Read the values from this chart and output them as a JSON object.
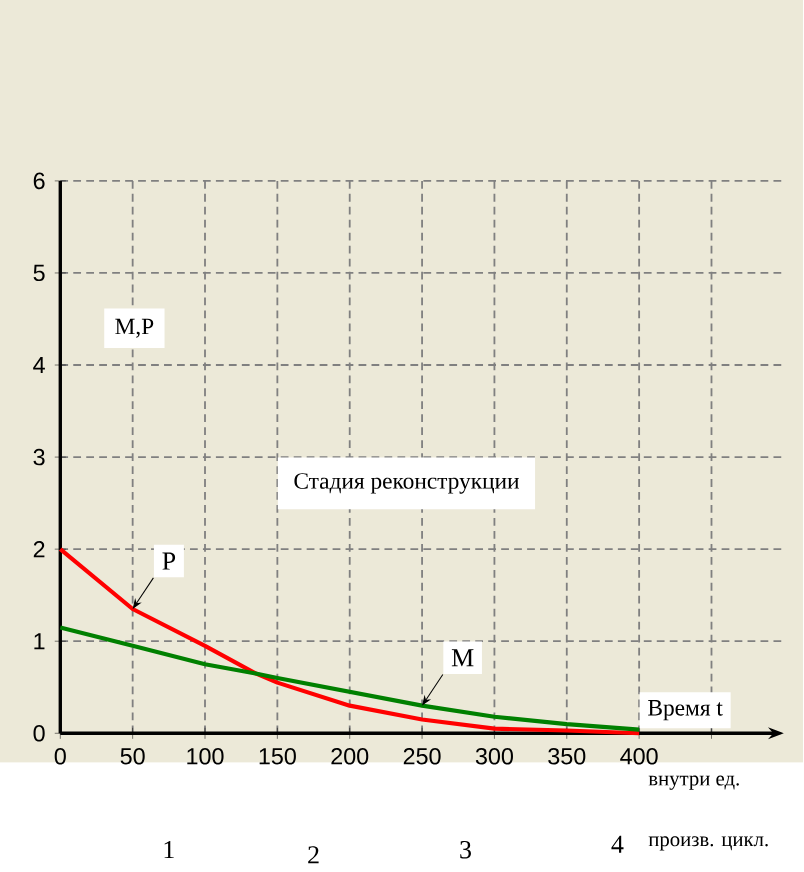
{
  "chart_data": {
    "type": "line",
    "xlabel": "Время t",
    "ylabel": "M,P",
    "x": [
      0,
      50,
      100,
      135,
      150,
      200,
      250,
      300,
      350,
      400
    ],
    "series": [
      {
        "name": "P",
        "color": "#ff0000",
        "values": [
          2.0,
          1.35,
          0.95,
          0.65,
          0.55,
          0.3,
          0.15,
          0.05,
          0.03,
          0.0
        ]
      },
      {
        "name": "M",
        "color": "#008000",
        "values": [
          1.15,
          0.95,
          0.75,
          0.65,
          0.6,
          0.45,
          0.3,
          0.18,
          0.1,
          0.04
        ]
      }
    ],
    "xlim": [
      0,
      500
    ],
    "ylim": [
      0,
      6
    ],
    "xticks": [
      0,
      50,
      100,
      150,
      200,
      250,
      300,
      350,
      400,
      {
        "value": 450,
        "label": null
      }
    ],
    "yticks": [
      0,
      1,
      2,
      3,
      4,
      5,
      6
    ],
    "annotations": [
      "Стадия реконструкции",
      "внутри ед.",
      "произв. цикл.",
      "1",
      "2",
      "3",
      "4"
    ],
    "grid": true,
    "marker": "none",
    "line_style": "solid"
  }
}
